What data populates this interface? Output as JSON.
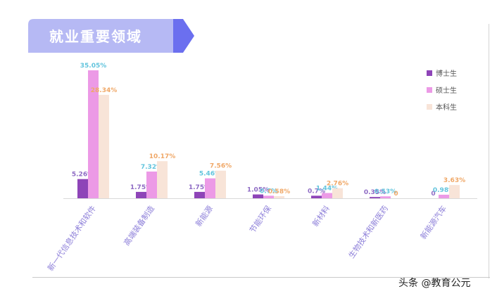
{
  "chart_data": {
    "type": "bar",
    "title": "就业重要领域",
    "categories": [
      "新一代信息技术和软件",
      "高端装备制造",
      "新能源",
      "节能环保",
      "新材料",
      "生物技术和新医药",
      "新能源汽车"
    ],
    "series": [
      {
        "name": "博士生",
        "color": "#8e44b8",
        "labelColor": "#8e6bc4",
        "values": [
          5.26,
          1.75,
          1.75,
          1.05,
          0.7,
          0.35,
          0
        ],
        "labels": [
          "5.26%",
          "1.75%",
          "1.75%",
          "1.05%",
          "0.7%",
          "0.35%",
          "0"
        ]
      },
      {
        "name": "硕士生",
        "color": "#ec9ae6",
        "labelColor": "#62c4dd",
        "values": [
          35.05,
          7.32,
          5.46,
          0.7,
          1.44,
          0.53,
          0.98
        ],
        "labels": [
          "35.05%",
          "7.32%",
          "5.46%",
          "0.7%",
          "1.44%",
          "0.53%",
          "0.98%"
        ]
      },
      {
        "name": "本科生",
        "color": "#f8e4d8",
        "labelColor": "#f0a868",
        "values": [
          28.34,
          10.17,
          7.56,
          0.58,
          2.76,
          0,
          3.63
        ],
        "labels": [
          "28.34%",
          "10.17%",
          "7.56%",
          "0.58%",
          "2.76%",
          "0",
          "3.63%"
        ]
      }
    ],
    "ylim": [
      0,
      35.05
    ],
    "legend_position": "top-right",
    "grid": false
  },
  "colors": {
    "banner_fill": "#b6b9f4",
    "banner_arrow": "#6b6fef",
    "category_label": "#8d7fd9",
    "baseline": "#d9d9d9"
  },
  "watermark": "头条 @教育公元"
}
